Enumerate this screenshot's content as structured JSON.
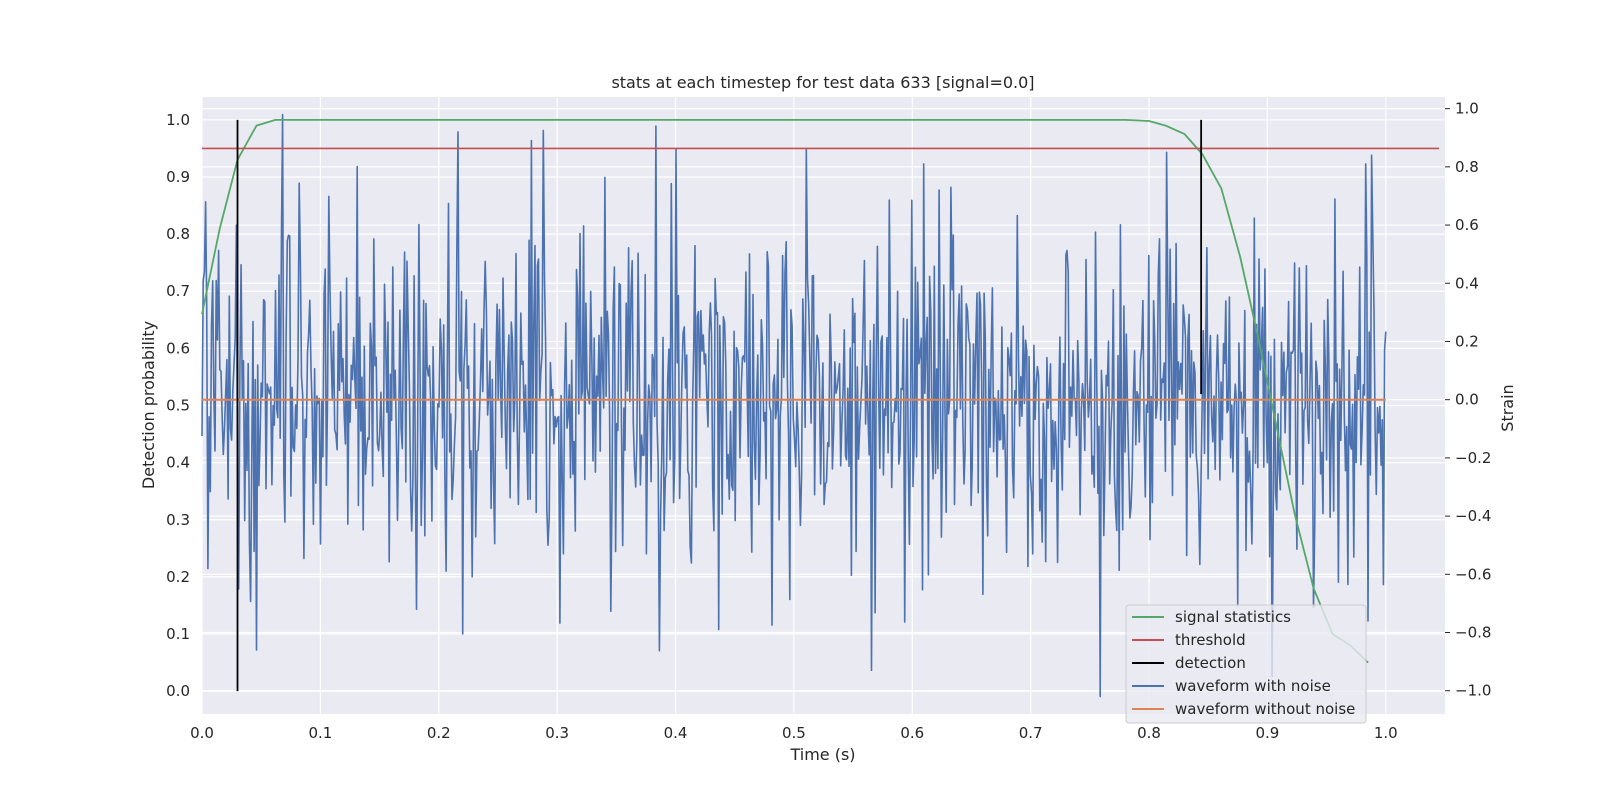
{
  "chart_data": {
    "type": "line",
    "title": "stats at each timestep for test data 633 [signal=0.0]",
    "xlabel": "Time (s)",
    "ylabel": "Detection probability",
    "y2label": "Strain",
    "xlim": [
      0.0,
      1.05
    ],
    "ylim": [
      -0.04,
      1.04
    ],
    "y2lim": [
      -1.08,
      1.04
    ],
    "x_ticks": [
      "0.0",
      "0.1",
      "0.2",
      "0.3",
      "0.4",
      "0.5",
      "0.6",
      "0.7",
      "0.8",
      "0.9",
      "1.0"
    ],
    "y_ticks": [
      "0.0",
      "0.1",
      "0.2",
      "0.3",
      "0.4",
      "0.5",
      "0.6",
      "0.7",
      "0.8",
      "0.9",
      "1.0"
    ],
    "y2_ticks": [
      "−1.0",
      "−0.8",
      "−0.6",
      "−0.4",
      "−0.2",
      "0.0",
      "0.2",
      "0.4",
      "0.6",
      "0.8",
      "1.0"
    ],
    "grid": true,
    "legend_position": "lower-right",
    "series": [
      {
        "name": "signal statistics",
        "axis": "left",
        "color": "#55a868",
        "x": [
          0.0,
          0.015,
          0.03,
          0.046,
          0.062,
          0.078,
          0.1,
          0.2,
          0.3,
          0.4,
          0.5,
          0.6,
          0.7,
          0.78,
          0.8,
          0.814,
          0.83,
          0.845,
          0.861,
          0.877,
          0.892,
          0.908,
          0.923,
          0.939,
          0.955,
          0.97,
          0.985
        ],
        "values": [
          0.66,
          0.81,
          0.93,
          0.99,
          1.0,
          1.0,
          1.0,
          1.0,
          1.0,
          1.0,
          1.0,
          1.0,
          1.0,
          1.0,
          0.998,
          0.99,
          0.975,
          0.94,
          0.88,
          0.76,
          0.62,
          0.46,
          0.31,
          0.18,
          0.1,
          0.08,
          0.05
        ]
      },
      {
        "name": "threshold",
        "axis": "left",
        "color": "#c44e52",
        "x": [
          0.0,
          1.045
        ],
        "values": [
          0.95,
          0.95
        ]
      },
      {
        "name": "detection",
        "axis": "left",
        "color": "#000000",
        "segments": [
          {
            "x": 0.03,
            "y": [
              0.0,
              1.0
            ]
          },
          {
            "x": 0.844,
            "y": [
              0.52,
              1.0
            ]
          }
        ]
      },
      {
        "name": "waveform with noise",
        "axis": "right",
        "color": "#4c72b0",
        "x_start": 0.0,
        "x_end": 1.0,
        "n_points": 1000,
        "noise_sd": 0.3,
        "seed": 633,
        "spikes": [
          {
            "x": 0.003,
            "y": 0.68
          },
          {
            "x": 0.005,
            "y": -0.58
          },
          {
            "x": 0.029,
            "y": 0.6
          },
          {
            "x": 0.031,
            "y": -0.65
          },
          {
            "x": 0.046,
            "y": -0.86
          },
          {
            "x": 0.068,
            "y": 0.98
          },
          {
            "x": 0.216,
            "y": 0.92
          },
          {
            "x": 0.181,
            "y": -0.72
          },
          {
            "x": 0.383,
            "y": 0.94
          },
          {
            "x": 0.4,
            "y": 0.86
          },
          {
            "x": 0.436,
            "y": -0.79
          },
          {
            "x": 0.566,
            "y": -0.93
          },
          {
            "x": 0.61,
            "y": 0.81
          },
          {
            "x": 0.759,
            "y": -1.02
          },
          {
            "x": 0.815,
            "y": 0.85
          },
          {
            "x": 0.983,
            "y": 0.81
          },
          {
            "x": 0.985,
            "y": -0.76
          },
          {
            "x": 0.988,
            "y": 0.84
          }
        ]
      },
      {
        "name": "waveform without noise",
        "axis": "right",
        "color": "#dd8452",
        "x": [
          0.0,
          1.0
        ],
        "values": [
          0.0,
          0.0
        ]
      }
    ]
  }
}
